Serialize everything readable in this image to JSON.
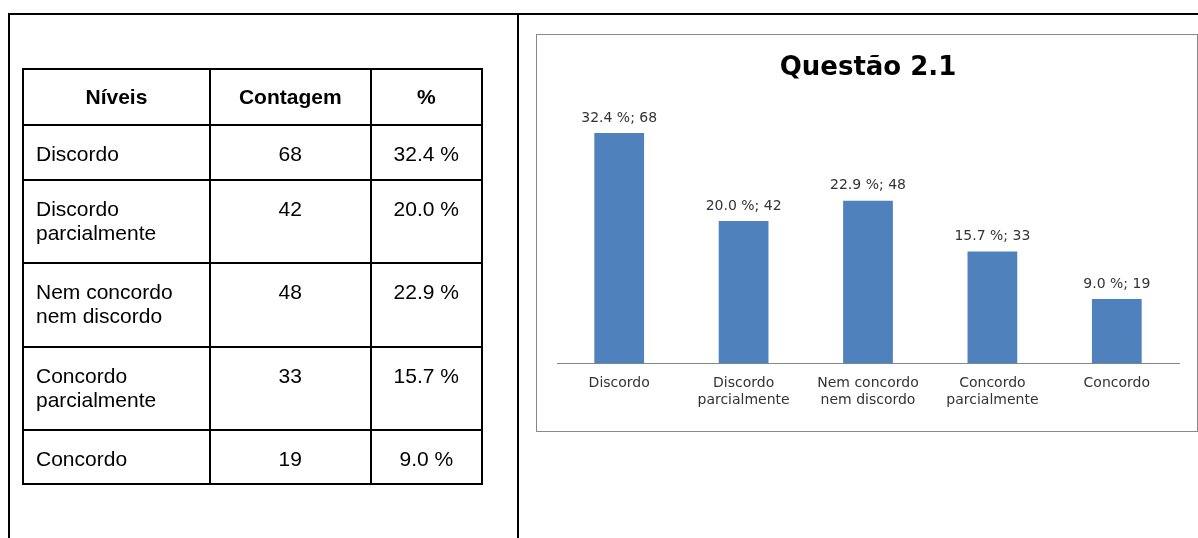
{
  "chart_data": [
    {
      "type": "other",
      "annotations": [
        "Níveis",
        "Contagem",
        "%",
        "Discordo",
        "68",
        "32.4 %",
        "Discordo parcialmente",
        "42",
        "20.0 %",
        "Nem concordo nem discordo",
        "48",
        "22.9 %",
        "Concordo parcialmente",
        "33",
        "15.7 %",
        "Concordo",
        "19",
        "9.0 %"
      ]
    },
    {
      "type": "bar",
      "title": "Questão 2.1",
      "categories": [
        "Discordo",
        "Discordo parcialmente",
        "Nem concordo nem discordo",
        "Concordo parcialmente",
        "Concordo"
      ],
      "values": [
        68,
        42,
        48,
        33,
        19
      ],
      "color": "#4f81bd",
      "value_labels": [
        "32.4 %; 68",
        "20.0 %; 42",
        "22.9 %; 48",
        "15.7 %; 33",
        "9.0 %; 19"
      ],
      "grid": false,
      "legend": false
    }
  ]
}
